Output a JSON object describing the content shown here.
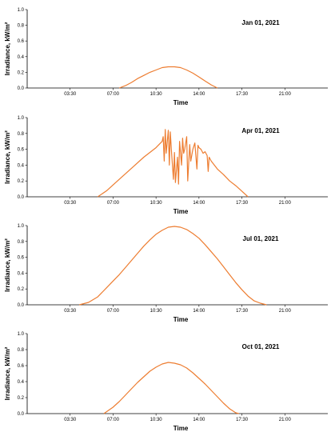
{
  "chart_data": [
    {
      "type": "line",
      "title": "Jan 01, 2021",
      "xlabel": "Time",
      "ylabel": "Irradiance, kW/m²",
      "ylim": [
        0,
        1.0
      ],
      "xlim": [
        "00:00",
        "24:30"
      ],
      "yticks": [
        "0.0",
        "0.2",
        "0.4",
        "0.6",
        "0.8",
        "1.0"
      ],
      "xticks": [
        "03:30",
        "07:00",
        "10:30",
        "14:00",
        "17:30",
        "21:00"
      ],
      "series": [
        {
          "color": "#ED7D31",
          "x": [
            "07:30",
            "08:00",
            "08:30",
            "09:00",
            "09:30",
            "10:00",
            "10:30",
            "11:00",
            "11:30",
            "12:00",
            "12:30",
            "13:00",
            "13:30",
            "14:00",
            "14:30",
            "15:00",
            "15:30"
          ],
          "y": [
            0.0,
            0.03,
            0.07,
            0.12,
            0.16,
            0.2,
            0.23,
            0.26,
            0.27,
            0.27,
            0.26,
            0.23,
            0.19,
            0.14,
            0.09,
            0.04,
            0.0
          ]
        }
      ]
    },
    {
      "type": "line",
      "title": "Apr 01, 2021",
      "xlabel": "Time",
      "ylabel": "Irradiance, kW/m²",
      "ylim": [
        0,
        1.0
      ],
      "xlim": [
        "00:00",
        "24:30"
      ],
      "yticks": [
        "0.0",
        "0.2",
        "0.4",
        "0.6",
        "0.8",
        "1.0"
      ],
      "xticks": [
        "03:30",
        "07:00",
        "10:30",
        "14:00",
        "17:30",
        "21:00"
      ],
      "series": [
        {
          "color": "#ED7D31",
          "x": [
            "05:45",
            "06:30",
            "07:30",
            "08:30",
            "09:30",
            "10:30",
            "11:00",
            "11:05",
            "11:10",
            "11:15",
            "11:20",
            "11:30",
            "11:35",
            "11:40",
            "11:45",
            "11:55",
            "12:00",
            "12:05",
            "12:15",
            "12:20",
            "12:25",
            "12:35",
            "12:40",
            "12:45",
            "12:50",
            "13:00",
            "13:05",
            "13:15",
            "13:20",
            "13:30",
            "13:40",
            "13:50",
            "13:55",
            "14:00",
            "14:10",
            "14:20",
            "14:30",
            "14:40",
            "14:45",
            "14:50",
            "15:00",
            "15:30",
            "16:00",
            "16:30",
            "17:00",
            "17:30",
            "18:00"
          ],
          "y": [
            0.0,
            0.08,
            0.22,
            0.36,
            0.5,
            0.62,
            0.7,
            0.76,
            0.45,
            0.85,
            0.55,
            0.84,
            0.4,
            0.82,
            0.6,
            0.22,
            0.56,
            0.18,
            0.5,
            0.16,
            0.7,
            0.4,
            0.74,
            0.55,
            0.6,
            0.76,
            0.2,
            0.66,
            0.45,
            0.6,
            0.68,
            0.35,
            0.65,
            0.62,
            0.6,
            0.55,
            0.57,
            0.52,
            0.32,
            0.5,
            0.45,
            0.35,
            0.28,
            0.2,
            0.14,
            0.07,
            0.0
          ]
        }
      ]
    },
    {
      "type": "line",
      "title": "Jul 01, 2021",
      "xlabel": "Time",
      "ylabel": "Irradiance, kW/m²",
      "ylim": [
        0,
        1.0
      ],
      "xlim": [
        "00:00",
        "24:30"
      ],
      "yticks": [
        "0.0",
        "0.2",
        "0.4",
        "0.6",
        "0.8",
        "1.0"
      ],
      "xticks": [
        "03:30",
        "07:00",
        "10:30",
        "14:00",
        "17:30",
        "21:00"
      ],
      "series": [
        {
          "color": "#ED7D31",
          "x": [
            "04:15",
            "05:00",
            "05:45",
            "06:30",
            "07:00",
            "07:30",
            "08:00",
            "08:30",
            "09:00",
            "09:30",
            "10:00",
            "10:30",
            "11:00",
            "11:30",
            "12:00",
            "12:30",
            "13:00",
            "13:30",
            "14:00",
            "14:30",
            "15:00",
            "15:30",
            "16:00",
            "16:30",
            "17:00",
            "17:30",
            "18:00",
            "18:30",
            "19:00",
            "19:30"
          ],
          "y": [
            0.0,
            0.03,
            0.1,
            0.22,
            0.3,
            0.38,
            0.47,
            0.56,
            0.65,
            0.74,
            0.82,
            0.89,
            0.94,
            0.98,
            0.99,
            0.98,
            0.95,
            0.9,
            0.84,
            0.76,
            0.67,
            0.58,
            0.48,
            0.38,
            0.28,
            0.19,
            0.11,
            0.05,
            0.02,
            0.0
          ]
        }
      ]
    },
    {
      "type": "line",
      "title": "Oct 01, 2021",
      "xlabel": "Time",
      "ylabel": "Irradiance, kW/m²",
      "ylim": [
        0,
        1.0
      ],
      "xlim": [
        "00:00",
        "24:30"
      ],
      "yticks": [
        "0.0",
        "0.2",
        "0.4",
        "0.6",
        "0.8",
        "1.0"
      ],
      "xticks": [
        "03:30",
        "07:00",
        "10:30",
        "14:00",
        "17:30",
        "21:00"
      ],
      "series": [
        {
          "color": "#ED7D31",
          "x": [
            "06:15",
            "07:00",
            "07:30",
            "08:00",
            "08:30",
            "09:00",
            "09:30",
            "10:00",
            "10:30",
            "11:00",
            "11:30",
            "12:00",
            "12:30",
            "13:00",
            "13:30",
            "14:00",
            "14:30",
            "15:00",
            "15:30",
            "16:00",
            "16:30",
            "17:00",
            "17:15"
          ],
          "y": [
            0.0,
            0.08,
            0.15,
            0.23,
            0.31,
            0.39,
            0.46,
            0.53,
            0.58,
            0.62,
            0.64,
            0.63,
            0.61,
            0.57,
            0.51,
            0.44,
            0.37,
            0.29,
            0.21,
            0.13,
            0.06,
            0.01,
            0.0
          ]
        }
      ]
    }
  ]
}
